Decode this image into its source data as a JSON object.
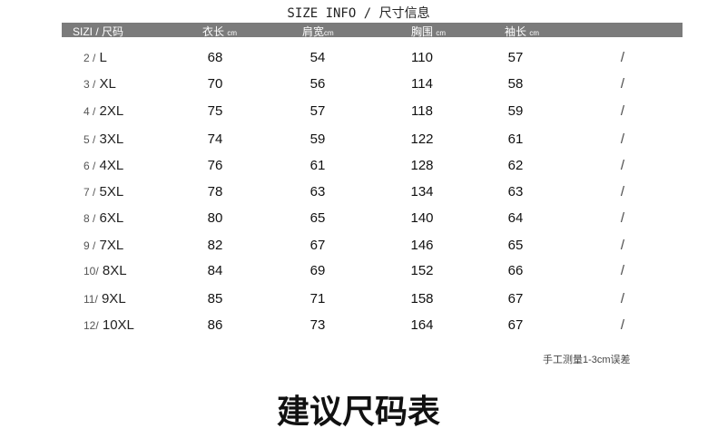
{
  "title": "SIZE INFO / 尺寸信息",
  "headers": {
    "size": "SIZI / 尺码",
    "length": "衣长",
    "shoulder": "肩宽",
    "chest": "胸围",
    "sleeve": "袖长",
    "unit": "cm"
  },
  "rows": [
    {
      "n": "2 /",
      "s": "L",
      "length": "68",
      "shoulder": "54",
      "chest": "110",
      "sleeve": "57",
      "mark": "/"
    },
    {
      "n": "3 /",
      "s": "XL",
      "length": "70",
      "shoulder": "56",
      "chest": "114",
      "sleeve": "58",
      "mark": "/"
    },
    {
      "n": "4 /",
      "s": "2XL",
      "length": "75",
      "shoulder": "57",
      "chest": "118",
      "sleeve": "59",
      "mark": "/"
    },
    {
      "n": "5 /",
      "s": "3XL",
      "length": "74",
      "shoulder": "59",
      "chest": "122",
      "sleeve": "61",
      "mark": "/"
    },
    {
      "n": "6 /",
      "s": "4XL",
      "length": "76",
      "shoulder": "61",
      "chest": "128",
      "sleeve": "62",
      "mark": "/"
    },
    {
      "n": "7 /",
      "s": "5XL",
      "length": "78",
      "shoulder": "63",
      "chest": "134",
      "sleeve": "63",
      "mark": "/"
    },
    {
      "n": "8 /",
      "s": "6XL",
      "length": "80",
      "shoulder": "65",
      "chest": "140",
      "sleeve": "64",
      "mark": "/"
    },
    {
      "n": "9 /",
      "s": "7XL",
      "length": "82",
      "shoulder": "67",
      "chest": "146",
      "sleeve": "65",
      "mark": "/"
    },
    {
      "n": "10/",
      "s": "8XL",
      "length": "84",
      "shoulder": "69",
      "chest": "152",
      "sleeve": "66",
      "mark": "/"
    },
    {
      "n": "11/",
      "s": "9XL",
      "length": "85",
      "shoulder": "71",
      "chest": "158",
      "sleeve": "67",
      "mark": "/"
    },
    {
      "n": "12/",
      "s": "10XL",
      "length": "86",
      "shoulder": "73",
      "chest": "164",
      "sleeve": "67",
      "mark": "/"
    }
  ],
  "note": "手工测量1-3cm误差",
  "caption": "建议尺码表"
}
